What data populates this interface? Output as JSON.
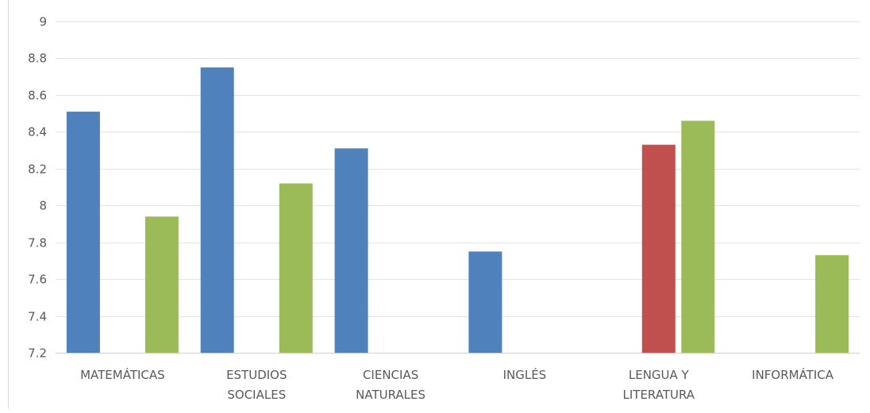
{
  "chart_data": {
    "type": "bar",
    "title": "",
    "xlabel": "",
    "ylabel": "",
    "ylim": [
      7.2,
      9
    ],
    "yticks": [
      "7.2",
      "7.4",
      "7.6",
      "7.8",
      "8",
      "8.2",
      "8.4",
      "8.6",
      "8.8",
      "9"
    ],
    "grid": true,
    "legend": "none",
    "categories": [
      [
        "MATEMÁTICAS"
      ],
      [
        "ESTUDIOS",
        "SOCIALES"
      ],
      [
        "CIENCIAS",
        "NATURALES"
      ],
      [
        "INGLÉS"
      ],
      [
        "LENGUA Y",
        "LITERATURA"
      ],
      [
        "INFORMÁTICA"
      ]
    ],
    "series": [
      {
        "color": "#4f81bd",
        "values": [
          8.51,
          8.75,
          8.31,
          7.75,
          null,
          null
        ]
      },
      {
        "color": "#c0504d",
        "values": [
          null,
          null,
          null,
          null,
          8.33,
          null
        ]
      },
      {
        "color": "#9bbb59",
        "values": [
          7.94,
          8.12,
          null,
          null,
          8.46,
          7.73
        ]
      }
    ]
  }
}
